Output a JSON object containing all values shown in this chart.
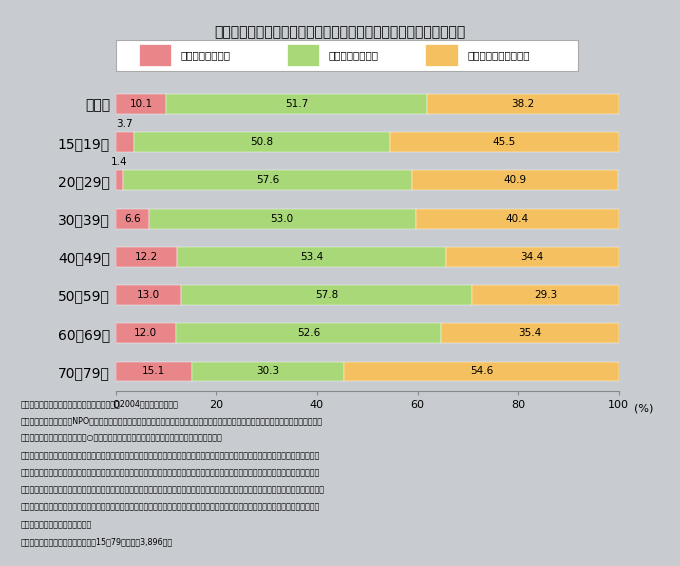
{
  "title": "第３－１－２図　地域の活動に現在参加している人の割合は約１割",
  "categories": [
    "全　体",
    "15～19歳",
    "20～29歳",
    "30～39歳",
    "40～49歳",
    "50～59歳",
    "60～69歳",
    "70～79歳"
  ],
  "current": [
    10.1,
    3.7,
    1.4,
    6.6,
    12.2,
    13.0,
    12.0,
    15.1
  ],
  "future_yes": [
    51.7,
    50.8,
    57.6,
    53.0,
    53.4,
    57.8,
    52.6,
    30.3
  ],
  "future_no": [
    38.2,
    45.5,
    40.9,
    40.4,
    34.4,
    29.3,
    35.4,
    54.6
  ],
  "color_current": "#e8868a",
  "color_future_yes": "#a8d878",
  "color_future_no": "#f5c060",
  "legend_labels": [
    "現在参加している",
    "今後は参加したい",
    "今後も参加したくない"
  ],
  "bg_color": "#c8ccd0",
  "notes": [
    "（備考）１．内閣府「国民生活選好度調査」（2004年）により作成。",
    "　　　　２．「あなたはNPOやボランティア、地域の活動などに参加したことがありますか。また、今後参加したいと思いますか。あては",
    "　　　　　　まるものに１つに○をお付けください。」という問に対して回答した人の割合。",
    "　　　　３．「現在参加している」は、「現在、積極的に参加している」、「現在、お付き合いで参加している」と回答した人の割合。「今",
    "　　　　　　後は参加したい」は、「過去に参加したことがあり、また参加したい」、「これまで参加したことはないが、今後は是非参加し",
    "　　　　　　たい」、「これまで参加したことはないが、機会があれば参加してみたい」と回答した人の割合。「今後も参加したくない」は、",
    "　　　　　　「過去に参加したことがあるが、もう参加したくない」、「これまで参加したことはなく、今後も参加したいとは思わない」と",
    "　　　　　　回答した人の割合。",
    "　　　　４．回答した人は、全国の15～79歳の男女3,896人。"
  ]
}
